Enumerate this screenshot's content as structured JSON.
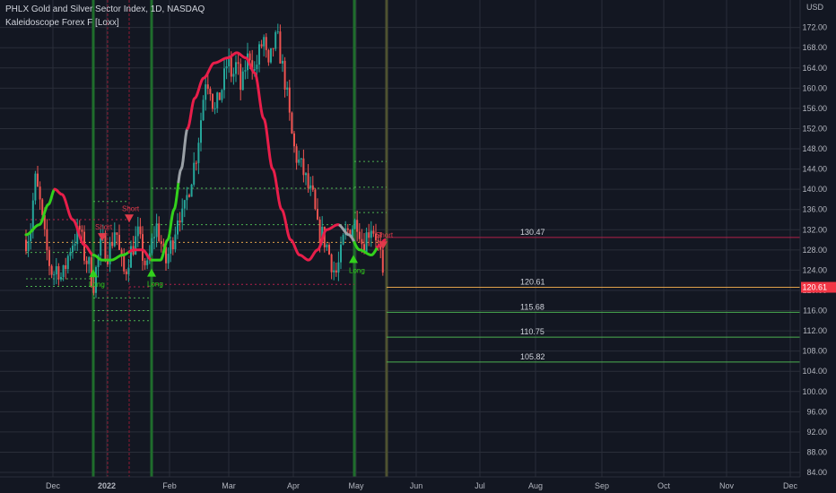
{
  "header": {
    "title": "PHLX Gold and Silver Sector Index, 1D, NASDAQ",
    "indicator": "Kaleidoscope Forex F [Loxx]",
    "currency": "USD"
  },
  "chart_data": {
    "type": "candlestick",
    "y_ticks": [
      84,
      88,
      92,
      96,
      100,
      104,
      108,
      112,
      116,
      120,
      124,
      128,
      132,
      136,
      140,
      144,
      148,
      152,
      156,
      160,
      164,
      168,
      172
    ],
    "y_tick_labels": [
      "84.00",
      "88.00",
      "92.00",
      "96.00",
      "100.00",
      "104.00",
      "108.00",
      "112.00",
      "116.00",
      "120.00",
      "124.00",
      "128.00",
      "132.00",
      "136.00",
      "140.00",
      "144.00",
      "148.00",
      "152.00",
      "156.00",
      "160.00",
      "164.00",
      "168.00",
      "172.00"
    ],
    "ylim": [
      82.5,
      176.5
    ],
    "x_labels": [
      "Dec",
      "2022",
      "Feb",
      "Mar",
      "Apr",
      "May",
      "Jun",
      "Jul",
      "Aug",
      "Sep",
      "Oct",
      "Nov",
      "Dec"
    ],
    "x_label_days": [
      0,
      60,
      130,
      196,
      268,
      338,
      405,
      476,
      538,
      612,
      681,
      751,
      822
    ],
    "last_price": 120.61,
    "last_price_label": "120.61",
    "colors": {
      "up": "#26a69a",
      "down": "#ef5350",
      "background": "#131722",
      "grid": "#2a2e39",
      "green_line": "#33d11c",
      "red_line": "#e81e4a",
      "level_green": "#4caf50",
      "level_red": "#b2204a",
      "level_orange": "#e0a14a"
    },
    "price_path": [
      [
        -30,
        130
      ],
      [
        -25,
        132
      ],
      [
        -20,
        142
      ],
      [
        -15,
        138
      ],
      [
        -10,
        131
      ],
      [
        -5,
        126
      ],
      [
        0,
        123
      ],
      [
        5,
        125
      ],
      [
        10,
        122
      ],
      [
        20,
        129
      ],
      [
        30,
        132
      ],
      [
        35,
        127
      ],
      [
        40,
        125
      ],
      [
        45,
        121
      ],
      [
        50,
        126
      ],
      [
        55,
        130
      ],
      [
        60,
        127
      ],
      [
        65,
        129
      ],
      [
        70,
        133
      ],
      [
        75,
        126
      ],
      [
        80,
        123
      ],
      [
        85,
        127
      ],
      [
        90,
        129
      ],
      [
        95,
        131
      ],
      [
        100,
        127
      ],
      [
        105,
        124
      ],
      [
        110,
        129
      ],
      [
        115,
        133
      ],
      [
        120,
        130
      ],
      [
        125,
        125
      ],
      [
        130,
        128
      ],
      [
        135,
        131
      ],
      [
        140,
        136
      ],
      [
        145,
        134
      ],
      [
        150,
        139
      ],
      [
        155,
        143
      ],
      [
        160,
        147
      ],
      [
        165,
        154
      ],
      [
        170,
        162
      ],
      [
        175,
        161
      ],
      [
        180,
        155
      ],
      [
        185,
        158
      ],
      [
        190,
        161
      ],
      [
        195,
        166
      ],
      [
        200,
        162
      ],
      [
        205,
        165
      ],
      [
        210,
        159
      ],
      [
        215,
        165
      ],
      [
        220,
        167
      ],
      [
        225,
        163
      ],
      [
        230,
        167
      ],
      [
        235,
        170
      ],
      [
        240,
        163
      ],
      [
        245,
        168
      ],
      [
        250,
        170
      ],
      [
        255,
        165
      ],
      [
        260,
        160
      ],
      [
        265,
        152
      ],
      [
        270,
        147
      ],
      [
        275,
        145
      ],
      [
        280,
        143
      ],
      [
        285,
        140
      ],
      [
        290,
        138
      ],
      [
        295,
        132
      ],
      [
        300,
        131
      ],
      [
        305,
        129
      ],
      [
        310,
        126
      ],
      [
        315,
        123
      ],
      [
        320,
        126
      ],
      [
        325,
        131
      ],
      [
        330,
        132
      ],
      [
        335,
        133
      ],
      [
        340,
        134
      ],
      [
        345,
        129
      ],
      [
        350,
        131
      ],
      [
        355,
        133
      ],
      [
        360,
        131
      ],
      [
        365,
        127
      ],
      [
        368,
        121
      ]
    ],
    "signal_curve": [
      [
        -30,
        131
      ],
      [
        -15,
        133
      ],
      [
        -5,
        137
      ],
      [
        2,
        140
      ],
      [
        10,
        139
      ],
      [
        22,
        134
      ],
      [
        35,
        129
      ],
      [
        45,
        127
      ],
      [
        55,
        126
      ],
      [
        65,
        126
      ],
      [
        78,
        127
      ],
      [
        90,
        128
      ],
      [
        100,
        128
      ],
      [
        110,
        126
      ],
      [
        120,
        126
      ],
      [
        128,
        130
      ],
      [
        135,
        136
      ],
      [
        143,
        144
      ],
      [
        150,
        152
      ],
      [
        158,
        158
      ],
      [
        168,
        162
      ],
      [
        180,
        165
      ],
      [
        195,
        166
      ],
      [
        205,
        167
      ],
      [
        215,
        166
      ],
      [
        225,
        163
      ],
      [
        235,
        154
      ],
      [
        245,
        144
      ],
      [
        255,
        136
      ],
      [
        265,
        130
      ],
      [
        275,
        127
      ],
      [
        285,
        126
      ],
      [
        295,
        128
      ],
      [
        305,
        132
      ],
      [
        318,
        133
      ],
      [
        330,
        131
      ],
      [
        342,
        128
      ],
      [
        355,
        127
      ],
      [
        365,
        129
      ],
      [
        370,
        130
      ]
    ],
    "signal_colors": [
      {
        "from": -30,
        "to": 2,
        "color": "green"
      },
      {
        "from": 2,
        "to": 45,
        "color": "red"
      },
      {
        "from": 45,
        "to": 85,
        "color": "green"
      },
      {
        "from": 85,
        "to": 110,
        "color": "red"
      },
      {
        "from": 110,
        "to": 140,
        "color": "green"
      },
      {
        "from": 140,
        "to": 150,
        "color": "grey"
      },
      {
        "from": 150,
        "to": 208,
        "color": "red"
      },
      {
        "from": 208,
        "to": 320,
        "color": "red"
      },
      {
        "from": 320,
        "to": 336,
        "color": "grey"
      },
      {
        "from": 336,
        "to": 362,
        "color": "green"
      },
      {
        "from": 362,
        "to": 370,
        "color": "red"
      }
    ],
    "signal_markers": [
      {
        "day": 45,
        "type": "long",
        "label": "Long",
        "price": 123.5
      },
      {
        "day": 55,
        "type": "short",
        "label": "Short",
        "price": 130.6
      },
      {
        "day": 85,
        "type": "short",
        "label": "Short",
        "price": 134.3
      },
      {
        "day": 110,
        "type": "long",
        "label": "Long",
        "price": 123.6
      },
      {
        "day": 335,
        "type": "long",
        "label": "Long",
        "price": 126.3
      },
      {
        "day": 368,
        "type": "short",
        "label": "Short",
        "price": 129.0
      }
    ],
    "vertical_markers": [
      {
        "day": 45,
        "color": "green"
      },
      {
        "day": 61,
        "color": "red"
      },
      {
        "day": 85,
        "color": "red"
      },
      {
        "day": 110,
        "color": "green"
      },
      {
        "day": 336,
        "color": "green"
      },
      {
        "day": 372,
        "color": "olive"
      }
    ],
    "dotted_levels": [
      {
        "from": -30,
        "to": 45,
        "price": 122.3,
        "color": "green"
      },
      {
        "from": -30,
        "to": 45,
        "price": 120.8,
        "color": "green"
      },
      {
        "from": -30,
        "to": 45,
        "price": 127.5,
        "color": "green"
      },
      {
        "from": 45,
        "to": 110,
        "price": 118.5,
        "color": "green"
      },
      {
        "from": 45,
        "to": 110,
        "price": 116.0,
        "color": "green"
      },
      {
        "from": 45,
        "to": 110,
        "price": 114.0,
        "color": "green"
      },
      {
        "from": 45,
        "to": 85,
        "price": 137.6,
        "color": "green"
      },
      {
        "from": 85,
        "to": 110,
        "price": 120.7,
        "color": "red"
      },
      {
        "from": -30,
        "to": 85,
        "price": 134.0,
        "color": "red"
      },
      {
        "from": 110,
        "to": 336,
        "price": 140.2,
        "color": "green"
      },
      {
        "from": 110,
        "to": 336,
        "price": 133.0,
        "color": "green"
      },
      {
        "from": 110,
        "to": 336,
        "price": 121.2,
        "color": "red"
      },
      {
        "from": -30,
        "to": 372,
        "price": 129.5,
        "color": "orange"
      },
      {
        "from": 336,
        "to": 372,
        "price": 145.5,
        "color": "green"
      },
      {
        "from": 336,
        "to": 372,
        "price": 140.4,
        "color": "green"
      },
      {
        "from": 336,
        "to": 372,
        "price": 135.4,
        "color": "green"
      }
    ],
    "levels": [
      {
        "price": 130.47,
        "label": "130.47",
        "color": "red"
      },
      {
        "price": 120.61,
        "label": "120.61",
        "color": "orange"
      },
      {
        "price": 115.68,
        "label": "115.68",
        "color": "green"
      },
      {
        "price": 110.75,
        "label": "110.75",
        "color": "green"
      },
      {
        "price": 105.82,
        "label": "105.82",
        "color": "green"
      }
    ]
  }
}
